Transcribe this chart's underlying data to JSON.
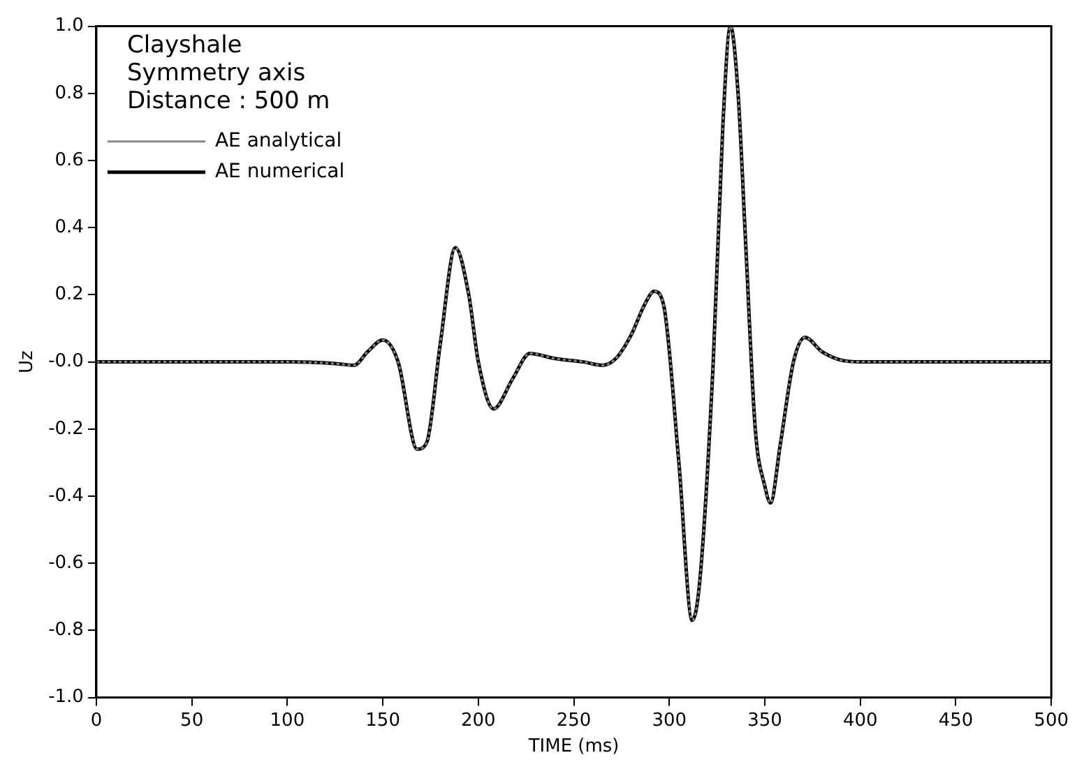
{
  "chart_data": {
    "type": "line",
    "xlabel": "TIME (ms)",
    "ylabel": "Uz",
    "annotations": [
      "Clayshale",
      "Symmetry axis",
      "Distance : 500 m"
    ],
    "x": [
      0,
      50,
      100,
      125,
      135,
      142,
      150,
      158,
      168,
      173,
      180,
      188,
      195,
      200,
      208,
      218,
      227,
      240,
      255,
      265,
      272,
      280,
      287,
      292,
      297,
      305,
      312,
      316,
      323,
      328,
      332,
      336,
      340,
      345,
      350,
      353,
      358,
      365,
      371,
      380,
      390,
      400,
      450,
      500
    ],
    "series": [
      {
        "name": "AE numerical",
        "color": "#000000",
        "line_style": "solid",
        "values": [
          0,
          0,
          0,
          -0.005,
          -0.01,
          0.03,
          0.065,
          0.0,
          -0.26,
          -0.24,
          0.05,
          0.34,
          0.2,
          0.0,
          -0.14,
          -0.05,
          0.025,
          0.01,
          0.0,
          -0.01,
          0.01,
          0.08,
          0.17,
          0.21,
          0.17,
          -0.3,
          -0.77,
          -0.65,
          0.0,
          0.7,
          1.0,
          0.8,
          0.35,
          -0.2,
          -0.37,
          -0.42,
          -0.25,
          0.0,
          0.073,
          0.03,
          0.005,
          0,
          0,
          0
        ]
      },
      {
        "name": "AE analytical",
        "color": "#888888",
        "line_style": "dotted",
        "values": [
          0,
          0,
          0,
          -0.005,
          -0.01,
          0.03,
          0.065,
          0.0,
          -0.26,
          -0.24,
          0.05,
          0.34,
          0.2,
          0.0,
          -0.14,
          -0.05,
          0.025,
          0.01,
          0.0,
          -0.01,
          0.01,
          0.08,
          0.17,
          0.21,
          0.17,
          -0.3,
          -0.77,
          -0.65,
          0.0,
          0.7,
          1.0,
          0.8,
          0.35,
          -0.2,
          -0.37,
          -0.42,
          -0.25,
          0.0,
          0.073,
          0.03,
          0.005,
          0,
          0,
          0
        ]
      }
    ],
    "xlim": [
      0,
      500
    ],
    "xticks": [
      0,
      50,
      100,
      150,
      200,
      250,
      300,
      350,
      400,
      450,
      500
    ],
    "ylim": [
      -1,
      1
    ],
    "yticks": [
      {
        "value": -1,
        "label": "-1.0"
      },
      {
        "value": -0.8,
        "label": "-0.8"
      },
      {
        "value": -0.6,
        "label": "-0.6"
      },
      {
        "value": -0.4,
        "label": "-0.4"
      },
      {
        "value": -0.2,
        "label": "-0.2"
      },
      {
        "value": 0,
        "label": "-0.0"
      },
      {
        "value": 0.2,
        "label": "0.2"
      },
      {
        "value": 0.4,
        "label": "0.4"
      },
      {
        "value": 0.6,
        "label": "0.6"
      },
      {
        "value": 0.8,
        "label": "0.8"
      },
      {
        "value": 1,
        "label": "1.0"
      }
    ],
    "grid": false,
    "legend": "top left",
    "marker": "none"
  }
}
